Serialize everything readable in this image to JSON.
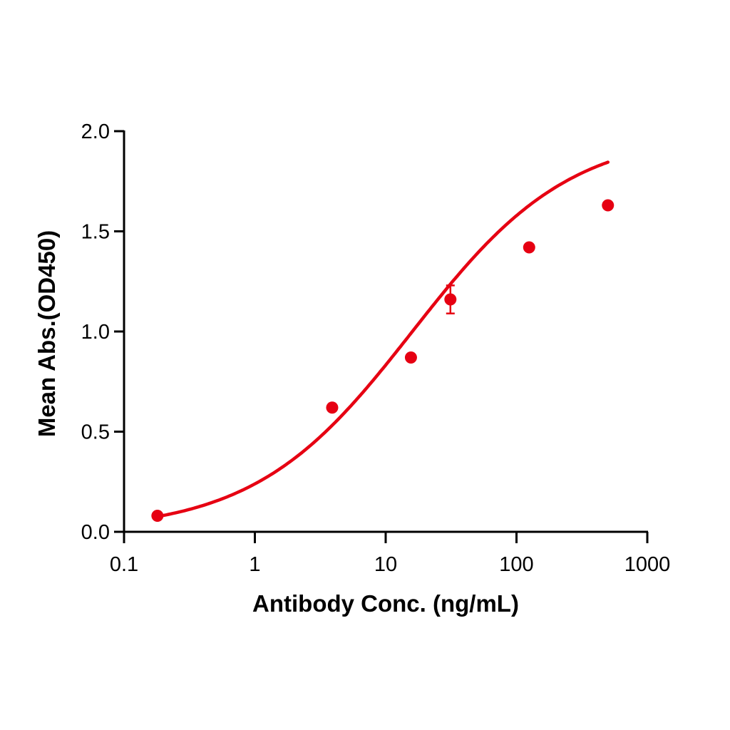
{
  "chart_data": {
    "type": "scatter",
    "title": "",
    "xlabel": "Antibody Conc. (ng/mL)",
    "ylabel": "Mean Abs.(OD450)",
    "xscale": "log",
    "xlim": [
      0.1,
      1000
    ],
    "ylim": [
      0.0,
      2.0
    ],
    "x_ticks": [
      "0.1",
      "1",
      "10",
      "100",
      "1000"
    ],
    "y_ticks": [
      "0.0",
      "0.5",
      "1.0",
      "1.5",
      "2.0"
    ],
    "grid": false,
    "legend": null,
    "color": "#e60012",
    "series": [
      {
        "name": "Mean Abs.",
        "x": [
          0.18,
          3.9,
          15.6,
          31.25,
          125,
          500
        ],
        "y": [
          0.08,
          0.62,
          0.87,
          1.16,
          1.42,
          1.63
        ],
        "error": [
          0.0,
          0.0,
          0.0,
          0.07,
          0.0,
          0.0
        ]
      }
    ],
    "fit": {
      "type": "4PL sigmoidal curve",
      "x_range": [
        0.18,
        500
      ]
    }
  }
}
